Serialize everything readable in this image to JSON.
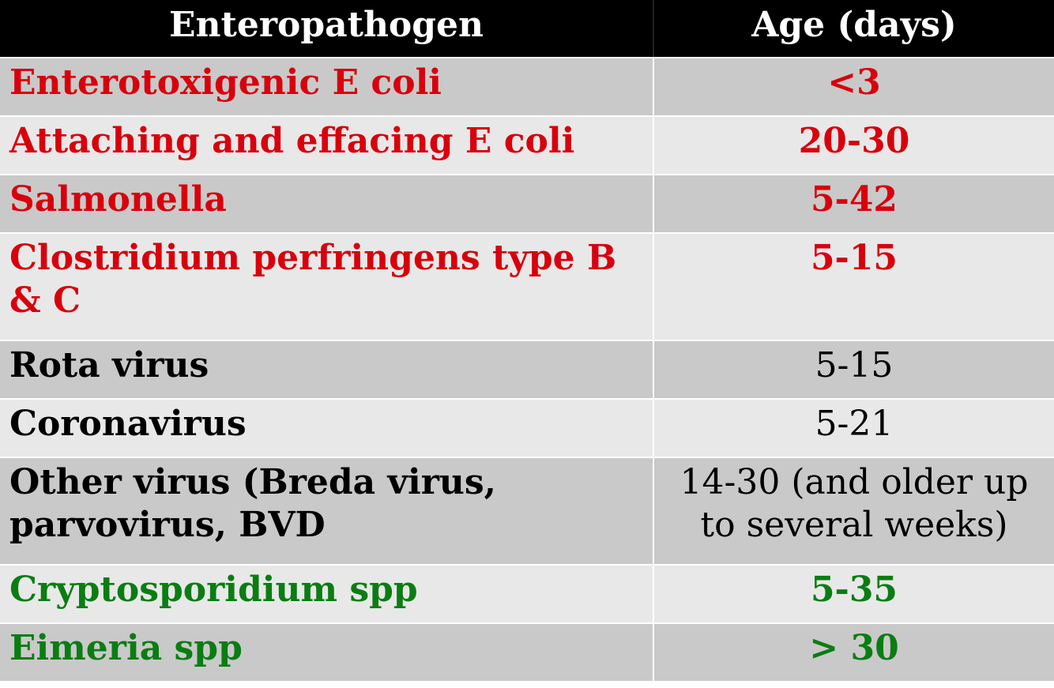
{
  "table": {
    "headers": {
      "pathogen": "Enteropathogen",
      "age": "Age (days)"
    },
    "rows": [
      {
        "pathogen": "Enterotoxigenic E coli",
        "age": "<3"
      },
      {
        "pathogen": "Attaching and effacing E coli",
        "age": "20-30"
      },
      {
        "pathogen": "Salmonella",
        "age": "5-42"
      },
      {
        "pathogen": "Clostridium perfringens type B & C",
        "age": "5-15"
      },
      {
        "pathogen": "Rota virus",
        "age": "5-15"
      },
      {
        "pathogen": "Coronavirus",
        "age": "5-21"
      },
      {
        "pathogen": "Other virus (Breda virus, parvovirus, BVD",
        "age": "14-30 (and older up to several weeks)"
      },
      {
        "pathogen": "Cryptosporidium spp",
        "age": "5-35"
      },
      {
        "pathogen": "Eimeria spp",
        "age": "> 30"
      }
    ]
  },
  "colors": {
    "header_bg": "#000000",
    "row_dark": "#c9c9c9",
    "row_light": "#e8e8e8",
    "bacteria_text": "#d8000c",
    "virus_text": "#000000",
    "protozoa_text": "#0a7d12"
  }
}
